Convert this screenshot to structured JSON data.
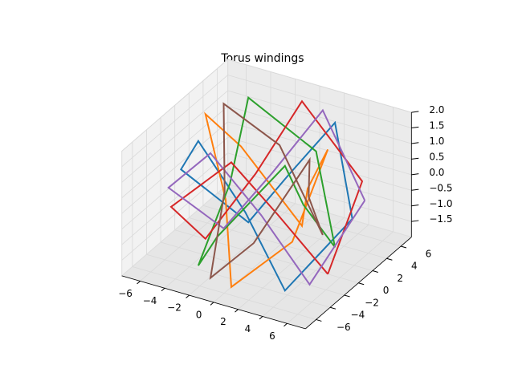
{
  "chart_data": {
    "type": "line3d",
    "title": "Torus windings",
    "series": [
      {
        "color": "#1f77b4",
        "x": [
          7,
          3.54,
          0,
          -3.54,
          -7,
          -3.54,
          0,
          3.54,
          7
        ],
        "y": [
          0,
          3.54,
          3,
          3.54,
          0,
          -3.54,
          -3,
          -3.54,
          0
        ],
        "z": [
          0,
          2,
          0,
          -2,
          0,
          2,
          0,
          -2,
          0
        ]
      },
      {
        "color": "#ff7f0e",
        "x": [
          5,
          2.12,
          0,
          -4.95,
          -5,
          -2.12,
          0,
          4.95,
          5
        ],
        "y": [
          0,
          2.12,
          5,
          4.95,
          0,
          -2.12,
          -5,
          -4.95,
          0
        ],
        "z": [
          2,
          0,
          -2,
          0,
          2,
          0,
          -2,
          0,
          2
        ]
      },
      {
        "color": "#2ca02c",
        "x": [
          3,
          3.54,
          0,
          -3.54,
          -3,
          -3.54,
          0,
          3.54,
          3
        ],
        "y": [
          0,
          3.54,
          7,
          3.54,
          0,
          -3.54,
          -7,
          -3.54,
          0
        ],
        "z": [
          0,
          -2,
          0,
          2,
          0,
          -2,
          0,
          2,
          0
        ]
      },
      {
        "color": "#d62728",
        "x": [
          5,
          4.95,
          0,
          -2.12,
          -5,
          -4.95,
          0,
          2.12,
          5
        ],
        "y": [
          0,
          4.95,
          5,
          2.12,
          0,
          -4.95,
          -5,
          -2.12,
          0
        ],
        "z": [
          -2,
          0,
          2,
          0,
          -2,
          0,
          2,
          0,
          -2
        ]
      },
      {
        "color": "#9467bd",
        "x": [
          6.47,
          1.92,
          -1.15,
          -4.62,
          -6.47,
          -1.92,
          1.15,
          4.62,
          6.47
        ],
        "y": [
          2.68,
          4.62,
          2.77,
          1.92,
          -2.68,
          -4.62,
          -2.77,
          -1.92,
          2.68
        ],
        "z": [
          0,
          2,
          0,
          -2,
          0,
          2,
          0,
          -2,
          0
        ]
      },
      {
        "color": "#8c564b",
        "x": [
          2.77,
          1.92,
          -2.68,
          -4.62,
          -2.77,
          -1.92,
          2.68,
          4.62,
          2.77
        ],
        "y": [
          1.15,
          4.62,
          6.47,
          1.92,
          -1.15,
          -4.62,
          -6.47,
          -1.92,
          1.15
        ],
        "z": [
          0,
          -2,
          0,
          2,
          0,
          -2,
          0,
          2,
          0
        ]
      }
    ],
    "xlim": [
      -7.5,
      7.5
    ],
    "ylim": [
      -7.5,
      7.5
    ],
    "zlim": [
      -2,
      2
    ],
    "xticks": [
      {
        "value": -6,
        "label": "−6"
      },
      {
        "value": -4,
        "label": "−4"
      },
      {
        "value": -2,
        "label": "−2"
      },
      0,
      2,
      4,
      6
    ],
    "yticks": [
      {
        "value": -6,
        "label": "−6"
      },
      {
        "value": -4,
        "label": "−4"
      },
      {
        "value": -2,
        "label": "−2"
      },
      0,
      2,
      4,
      6
    ],
    "zticks": [
      {
        "value": -1.5,
        "label": "−1.5"
      },
      {
        "value": -1,
        "label": "−1.0"
      },
      {
        "value": -0.5,
        "label": "−0.5"
      },
      {
        "value": 0,
        "label": "0.0"
      },
      {
        "value": 0.5,
        "label": "0.5"
      },
      {
        "value": 1,
        "label": "1.0"
      },
      {
        "value": 1.5,
        "label": "1.5"
      },
      {
        "value": 2,
        "label": "2.0"
      }
    ],
    "grid": true
  }
}
